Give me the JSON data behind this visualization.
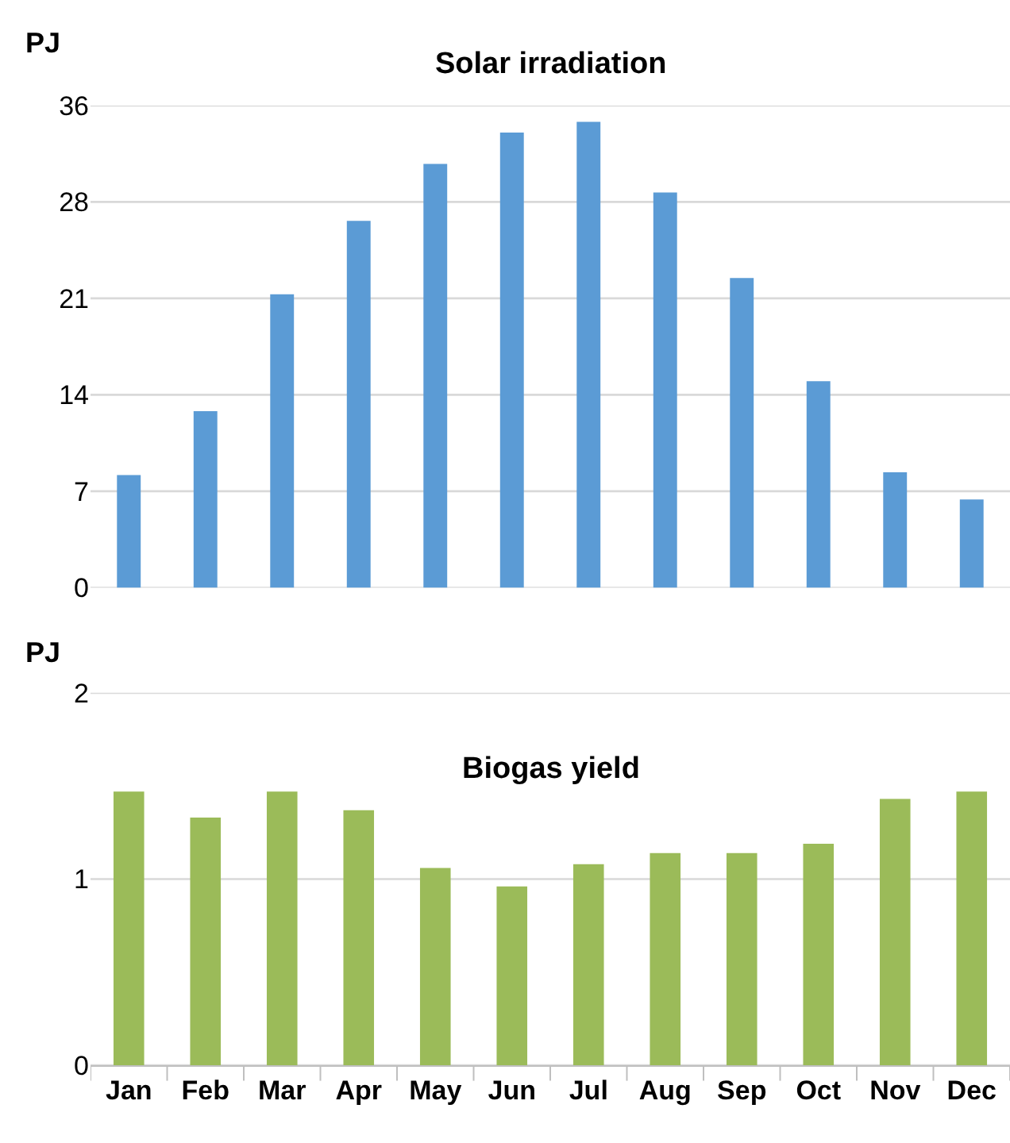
{
  "chart_data": [
    {
      "type": "bar",
      "title": "Solar irradiation",
      "ylabel": "PJ",
      "categories": [
        null,
        null,
        null,
        null,
        null,
        null,
        null,
        null,
        null,
        null,
        null,
        null
      ],
      "values": [
        8.3,
        13.0,
        21.6,
        27.0,
        31.2,
        33.5,
        34.3,
        29.1,
        22.8,
        15.2,
        8.5,
        6.5
      ],
      "color": "#5b9bd5",
      "ylim": [
        0,
        35.5
      ],
      "yticks": [
        0,
        {
          "value": 7.1,
          "label": "7"
        },
        {
          "value": 14.2,
          "label": "14"
        },
        {
          "value": 21.3,
          "label": "21"
        },
        {
          "value": 28.4,
          "label": "28"
        },
        {
          "value": 35.5,
          "label": "36"
        }
      ],
      "grid": "y",
      "tick_labels": "y"
    },
    {
      "type": "bar",
      "title": "Biogas yield",
      "ylabel": "PJ",
      "categories": [
        "Jan",
        "Feb",
        "Mar",
        "Apr",
        "May",
        "Jun",
        "Jul",
        "Aug",
        "Sep",
        "Oct",
        "Nov",
        "Dec"
      ],
      "values": [
        1.47,
        1.33,
        1.47,
        1.37,
        1.06,
        0.96,
        1.08,
        1.14,
        1.14,
        1.19,
        1.43,
        1.47
      ],
      "color": "#9bbb59",
      "ylim": [
        0,
        2
      ],
      "yticks": [
        0,
        1,
        2
      ],
      "grid": "y"
    }
  ]
}
